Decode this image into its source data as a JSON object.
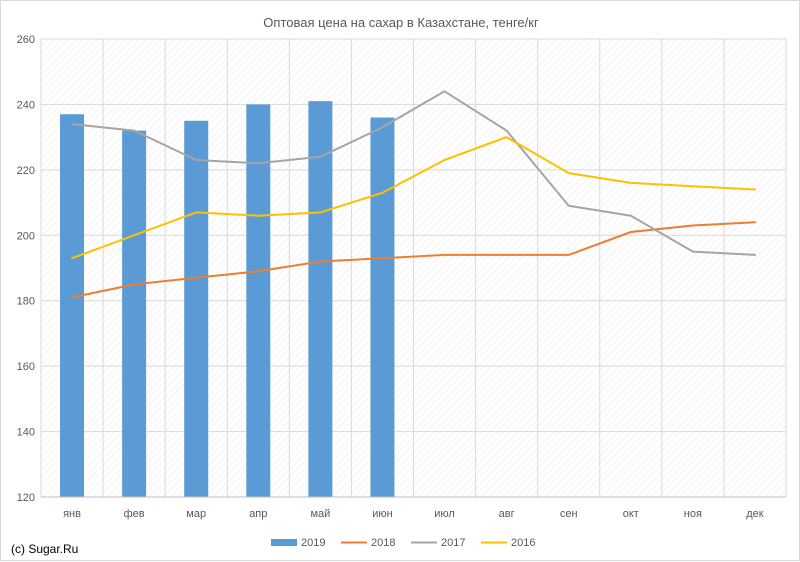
{
  "chart_data": {
    "type": "bar+line",
    "title": "Оптовая цена на сахар в Казахстане, тенге/кг",
    "categories": [
      "янв",
      "фев",
      "мар",
      "апр",
      "май",
      "июн",
      "июл",
      "авг",
      "сен",
      "окт",
      "ноя",
      "дек"
    ],
    "ylim": [
      120,
      260
    ],
    "yticks": [
      120,
      140,
      160,
      180,
      200,
      220,
      240,
      260
    ],
    "grid": "on",
    "legend": "bottom",
    "series": [
      {
        "name": "2019",
        "kind": "bar",
        "color": "#5b9bd5",
        "values": [
          237,
          232,
          235,
          240,
          241,
          236,
          null,
          null,
          null,
          null,
          null,
          null
        ]
      },
      {
        "name": "2018",
        "kind": "line",
        "color": "#ed7d31",
        "values": [
          181,
          185,
          187,
          189,
          192,
          193,
          194,
          194,
          194,
          201,
          203,
          204
        ]
      },
      {
        "name": "2017",
        "kind": "line",
        "color": "#a5a5a5",
        "values": [
          234,
          232,
          223,
          222,
          224,
          233,
          244,
          232,
          209,
          206,
          195,
          194
        ]
      },
      {
        "name": "2016",
        "kind": "line",
        "color": "#ffc000",
        "values": [
          193,
          200,
          207,
          206,
          207,
          213,
          223,
          230,
          219,
          216,
          215,
          214
        ]
      }
    ]
  },
  "footer": {
    "copyright": "(c) Sugar.Ru"
  }
}
